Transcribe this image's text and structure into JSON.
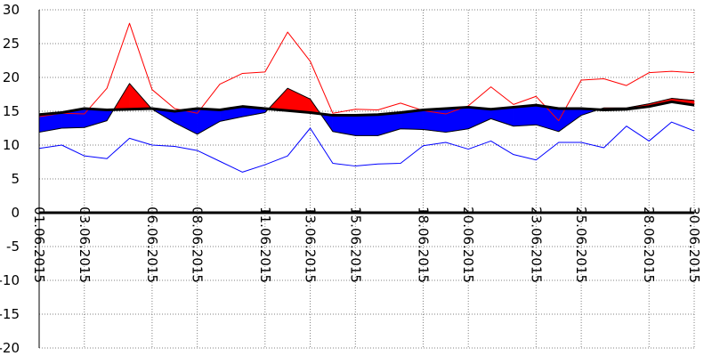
{
  "chart_data": {
    "type": "line",
    "title": "",
    "xlabel": "",
    "ylabel": "",
    "x": [
      "01.06.2015",
      "02.06.2015",
      "03.06.2015",
      "04.06.2015",
      "05.06.2015",
      "06.06.2015",
      "07.06.2015",
      "08.06.2015",
      "09.06.2015",
      "10.06.2015",
      "11.06.2015",
      "12.06.2015",
      "13.06.2015",
      "14.06.2015",
      "15.06.2015",
      "16.06.2015",
      "17.06.2015",
      "18.06.2015",
      "19.06.2015",
      "20.06.2015",
      "21.06.2015",
      "22.06.2015",
      "23.06.2015",
      "24.06.2015",
      "25.06.2015",
      "26.06.2015",
      "27.06.2015",
      "28.06.2015",
      "29.06.2015",
      "30.06.2015"
    ],
    "x_tick_labels": [
      "01.06.2015",
      "03.06.2015",
      "06.06.2015",
      "08.06.2015",
      "11.06.2015",
      "13.06.2015",
      "15.06.2015",
      "18.06.2015",
      "20.06.2015",
      "23.06.2015",
      "25.06.2015",
      "28.06.2015",
      "30.06.2015"
    ],
    "y_tick_labels": [
      "30",
      "25",
      "20",
      "15",
      "10",
      "5",
      "0",
      "-5",
      "-10",
      "-15",
      "-20"
    ],
    "ylim": [
      -20,
      30
    ],
    "grid": true,
    "series": [
      {
        "values": [
          14.2,
          14.7,
          14.6,
          18.4,
          28.0,
          18.2,
          15.4,
          14.7,
          19.0,
          20.6,
          20.8,
          26.7,
          22.4,
          14.7,
          15.3,
          15.2,
          16.2,
          15.1,
          14.6,
          15.8,
          18.6,
          16.0,
          17.2,
          13.6,
          19.6,
          19.8,
          18.8,
          20.7,
          20.9,
          20.7
        ],
        "color": "#ff0000"
      },
      {
        "values": [
          9.5,
          10.0,
          8.4,
          8.0,
          11.0,
          10.0,
          9.8,
          9.2,
          7.6,
          6.0,
          7.1,
          8.4,
          12.5,
          7.3,
          6.9,
          7.2,
          7.3,
          9.9,
          10.4,
          9.4,
          10.6,
          8.6,
          7.8,
          10.4,
          10.4,
          9.6,
          12.8,
          10.6,
          13.4,
          12.1
        ],
        "color": "#0000ff"
      },
      {
        "values": [
          11.9,
          12.5,
          12.6,
          13.6,
          19.1,
          15.3,
          13.3,
          11.6,
          13.5,
          14.2,
          14.8,
          18.4,
          16.8,
          12.0,
          11.4,
          11.4,
          12.4,
          12.3,
          11.9,
          12.4,
          13.9,
          12.8,
          13.0,
          12.0,
          14.4,
          15.5,
          15.5,
          16.1,
          16.9,
          16.6
        ],
        "color": "#000000"
      },
      {
        "values": [
          14.5,
          14.8,
          15.4,
          15.2,
          15.3,
          15.4,
          15.0,
          15.4,
          15.2,
          15.7,
          15.4,
          15.1,
          14.8,
          14.4,
          14.4,
          14.5,
          14.8,
          15.2,
          15.4,
          15.6,
          15.3,
          15.6,
          15.9,
          15.4,
          15.4,
          15.2,
          15.3,
          15.7,
          16.4,
          15.9
        ],
        "color": "#000000"
      }
    ]
  }
}
